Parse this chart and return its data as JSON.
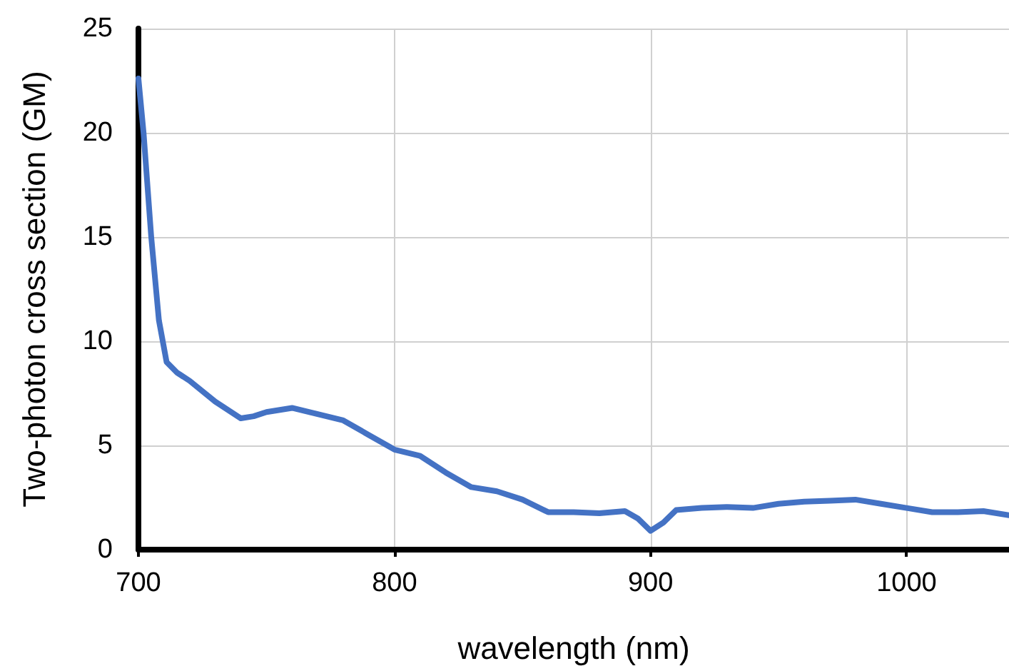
{
  "chart_data": {
    "type": "line",
    "xlabel": "wavelength (nm)",
    "ylabel": "Two-photon cross section (GM)",
    "x": [
      700,
      702,
      705,
      708,
      711,
      715,
      720,
      730,
      740,
      745,
      750,
      760,
      770,
      780,
      790,
      800,
      810,
      820,
      830,
      840,
      850,
      860,
      870,
      880,
      890,
      895,
      900,
      905,
      910,
      920,
      930,
      940,
      950,
      960,
      970,
      980,
      990,
      1000,
      1010,
      1020,
      1030,
      1040
    ],
    "series": [
      {
        "color": "#4472c4",
        "values": [
          22.6,
          20,
          15,
          11,
          9,
          8.5,
          8.1,
          7.1,
          6.3,
          6.4,
          6.6,
          6.8,
          6.5,
          6.2,
          5.5,
          4.8,
          4.5,
          3.7,
          3.0,
          2.8,
          2.4,
          1.8,
          1.8,
          1.75,
          1.85,
          1.5,
          0.9,
          1.3,
          1.9,
          2.0,
          2.05,
          2.0,
          2.2,
          2.3,
          2.35,
          2.4,
          2.2,
          2.0,
          1.8,
          1.8,
          1.85,
          1.65
        ]
      }
    ],
    "xlim": [
      700,
      1040
    ],
    "xticks": [
      700,
      800,
      900,
      1000
    ],
    "ylim": [
      0,
      25
    ],
    "yticks": [
      0,
      5,
      10,
      15,
      20,
      25
    ],
    "grid": true,
    "marker": "none",
    "line_style": "solid"
  }
}
